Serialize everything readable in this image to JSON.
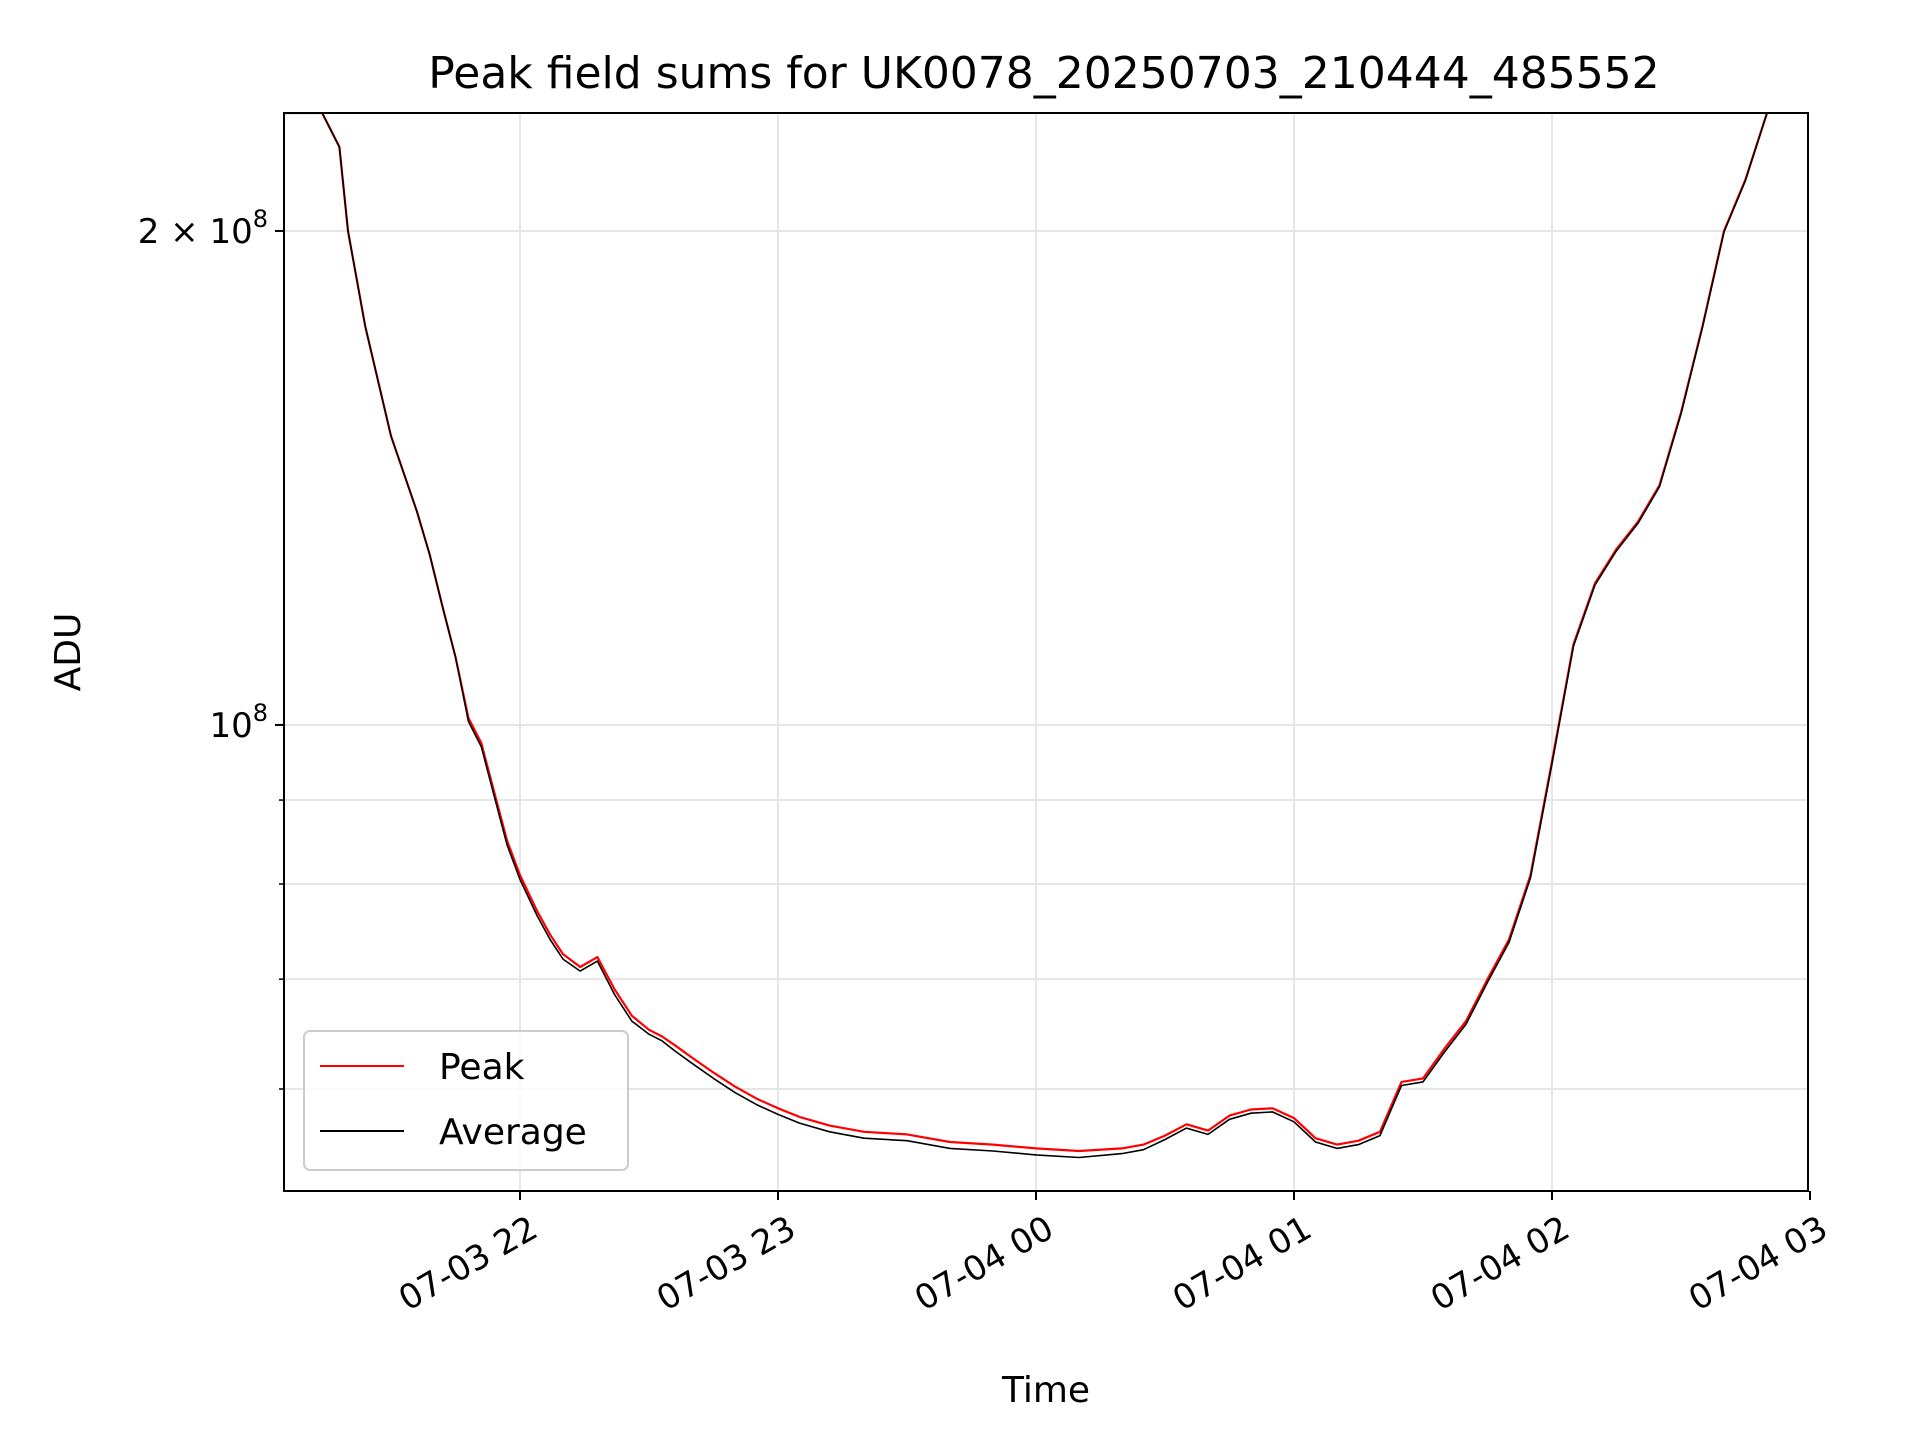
{
  "chart_data": {
    "type": "line",
    "title": "Peak field sums for UK0078_20250703_210444_485552",
    "xlabel": "Time",
    "ylabel": "ADU",
    "x_ticks": [
      "07-03 22",
      "07-03 23",
      "07-04 00",
      "07-04 01",
      "07-04 02",
      "07-04 03"
    ],
    "y_ticks": [
      {
        "value": 100000000,
        "label": "10",
        "exp": "8"
      },
      {
        "value": 200000000,
        "label": "2 × 10",
        "exp": "8"
      }
    ],
    "y_scale": "log",
    "xlim": [
      "2025-07-03 21:04",
      "2025-07-04 03:01"
    ],
    "ylim": [
      52000000,
      236000000
    ],
    "grid": true,
    "legend_position": "lower-left",
    "series": [
      {
        "name": "Peak",
        "color": "#ff0000",
        "x": [
          "2025-07-03 21:04",
          "2025-07-03 21:14",
          "2025-07-03 21:18",
          "2025-07-03 21:20",
          "2025-07-03 21:24",
          "2025-07-03 21:30",
          "2025-07-03 21:36",
          "2025-07-03 21:39",
          "2025-07-03 21:42",
          "2025-07-03 21:45",
          "2025-07-03 21:48",
          "2025-07-03 21:51",
          "2025-07-03 21:54",
          "2025-07-03 21:57",
          "2025-07-03 22:00",
          "2025-07-03 22:04",
          "2025-07-03 22:07",
          "2025-07-03 22:10",
          "2025-07-03 22:14",
          "2025-07-03 22:18",
          "2025-07-03 22:22",
          "2025-07-03 22:26",
          "2025-07-03 22:30",
          "2025-07-03 22:33",
          "2025-07-03 22:36",
          "2025-07-03 22:40",
          "2025-07-03 22:45",
          "2025-07-03 22:50",
          "2025-07-03 22:55",
          "2025-07-03 23:00",
          "2025-07-03 23:05",
          "2025-07-03 23:12",
          "2025-07-03 23:20",
          "2025-07-03 23:30",
          "2025-07-03 23:40",
          "2025-07-03 23:50",
          "2025-07-04 00:00",
          "2025-07-04 00:10",
          "2025-07-04 00:20",
          "2025-07-04 00:25",
          "2025-07-04 00:30",
          "2025-07-04 00:35",
          "2025-07-04 00:40",
          "2025-07-04 00:45",
          "2025-07-04 00:50",
          "2025-07-04 00:55",
          "2025-07-04 01:00",
          "2025-07-04 01:05",
          "2025-07-04 01:10",
          "2025-07-04 01:15",
          "2025-07-04 01:20",
          "2025-07-04 01:25",
          "2025-07-04 01:30",
          "2025-07-04 01:35",
          "2025-07-04 01:40",
          "2025-07-04 01:45",
          "2025-07-04 01:50",
          "2025-07-04 01:55",
          "2025-07-04 02:00",
          "2025-07-04 02:05",
          "2025-07-04 02:10",
          "2025-07-04 02:15",
          "2025-07-04 02:20",
          "2025-07-04 02:25",
          "2025-07-04 02:30",
          "2025-07-04 02:35",
          "2025-07-04 02:40",
          "2025-07-04 02:45",
          "2025-07-04 02:50"
        ],
        "values": [
          236000000,
          236000000,
          225000000,
          200000000,
          175000000,
          150000000,
          135000000,
          127000000,
          118000000,
          110000000,
          101000000,
          97500000,
          91000000,
          85000000,
          81000000,
          77000000,
          74500000,
          72500000,
          71200000,
          72200000,
          69000000,
          66500000,
          65200000,
          64600000,
          63800000,
          62700000,
          61400000,
          60200000,
          59200000,
          58400000,
          57700000,
          57000000,
          56500000,
          56300000,
          55700000,
          55500000,
          55200000,
          55000000,
          55200000,
          55500000,
          56200000,
          57100000,
          56600000,
          57800000,
          58300000,
          58400000,
          57600000,
          56000000,
          55500000,
          55800000,
          56500000,
          60600000,
          60900000,
          63500000,
          66000000,
          70000000,
          74000000,
          81000000,
          95000000,
          112000000,
          122000000,
          128000000,
          133000000,
          140000000,
          155000000,
          175000000,
          200000000,
          215000000,
          236000000
        ]
      },
      {
        "name": "Average",
        "color": "#000000",
        "x": [
          "2025-07-03 21:04",
          "2025-07-03 21:14",
          "2025-07-03 21:18",
          "2025-07-03 21:20",
          "2025-07-03 21:24",
          "2025-07-03 21:30",
          "2025-07-03 21:36",
          "2025-07-03 21:39",
          "2025-07-03 21:42",
          "2025-07-03 21:45",
          "2025-07-03 21:48",
          "2025-07-03 21:51",
          "2025-07-03 21:54",
          "2025-07-03 21:57",
          "2025-07-03 22:00",
          "2025-07-03 22:04",
          "2025-07-03 22:07",
          "2025-07-03 22:10",
          "2025-07-03 22:14",
          "2025-07-03 22:18",
          "2025-07-03 22:22",
          "2025-07-03 22:26",
          "2025-07-03 22:30",
          "2025-07-03 22:33",
          "2025-07-03 22:36",
          "2025-07-03 22:40",
          "2025-07-03 22:45",
          "2025-07-03 22:50",
          "2025-07-03 22:55",
          "2025-07-03 23:00",
          "2025-07-03 23:05",
          "2025-07-03 23:12",
          "2025-07-03 23:20",
          "2025-07-03 23:30",
          "2025-07-03 23:40",
          "2025-07-03 23:50",
          "2025-07-04 00:00",
          "2025-07-04 00:10",
          "2025-07-04 00:20",
          "2025-07-04 00:25",
          "2025-07-04 00:30",
          "2025-07-04 00:35",
          "2025-07-04 00:40",
          "2025-07-04 00:45",
          "2025-07-04 00:50",
          "2025-07-04 00:55",
          "2025-07-04 01:00",
          "2025-07-04 01:05",
          "2025-07-04 01:10",
          "2025-07-04 01:15",
          "2025-07-04 01:20",
          "2025-07-04 01:25",
          "2025-07-04 01:30",
          "2025-07-04 01:35",
          "2025-07-04 01:40",
          "2025-07-04 01:45",
          "2025-07-04 01:50",
          "2025-07-04 01:55",
          "2025-07-04 02:00",
          "2025-07-04 02:05",
          "2025-07-04 02:10",
          "2025-07-04 02:15",
          "2025-07-04 02:20",
          "2025-07-04 02:25",
          "2025-07-04 02:30",
          "2025-07-04 02:35",
          "2025-07-04 02:40",
          "2025-07-04 02:45",
          "2025-07-04 02:50"
        ],
        "values": [
          236000000,
          236000000,
          225000000,
          200000000,
          175000000,
          150000000,
          135000000,
          127000000,
          118000000,
          110000000,
          100500000,
          97000000,
          90500000,
          84500000,
          80500000,
          76500000,
          74000000,
          72000000,
          70800000,
          71800000,
          68500000,
          66000000,
          64800000,
          64200000,
          63300000,
          62200000,
          60900000,
          59700000,
          58700000,
          57900000,
          57200000,
          56500000,
          56000000,
          55800000,
          55200000,
          55000000,
          54700000,
          54500000,
          54800000,
          55100000,
          55900000,
          56800000,
          56300000,
          57500000,
          58000000,
          58100000,
          57300000,
          55700000,
          55200000,
          55500000,
          56200000,
          60300000,
          60600000,
          63200000,
          65700000,
          69700000,
          73700000,
          80700000,
          94700000,
          111700000,
          121700000,
          127700000,
          132700000,
          139700000,
          154700000,
          174700000,
          199700000,
          214700000,
          236000000
        ]
      }
    ]
  }
}
